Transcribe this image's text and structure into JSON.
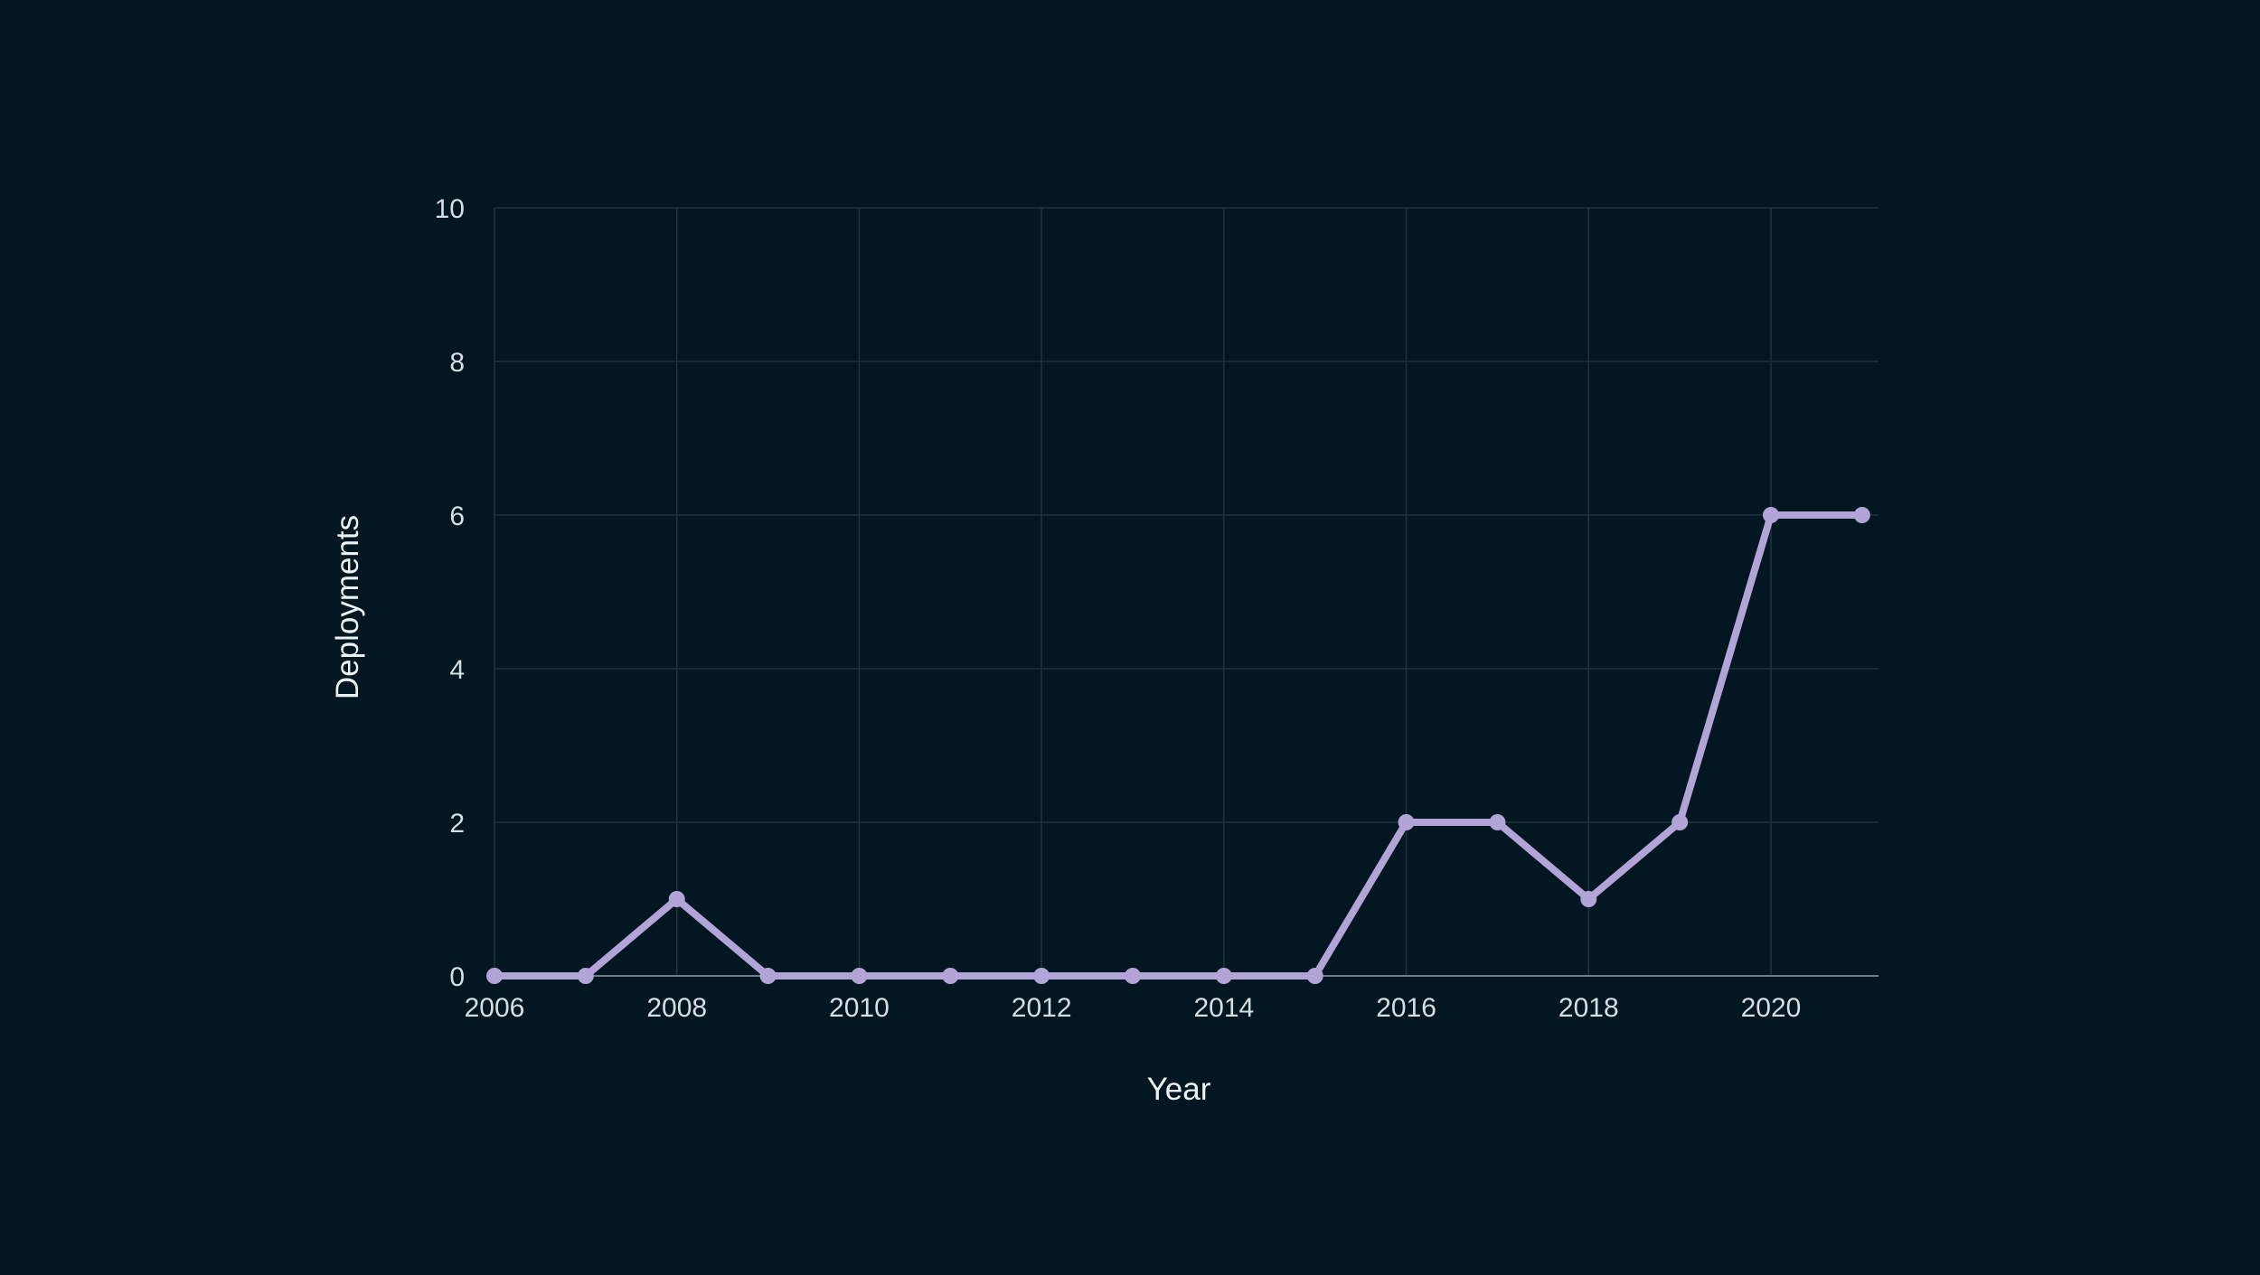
{
  "colors": {
    "background": "#021722",
    "grid": "#1f333d",
    "axis_line": "#6f7c85",
    "tick_label": "#d8dde3",
    "axis_title": "#eef1f4",
    "series": "#b3a4d8"
  },
  "chart_data": {
    "type": "line",
    "title": "",
    "xlabel": "Year",
    "ylabel": "Deployments",
    "xlim": [
      2006,
      2021.2
    ],
    "ylim": [
      0,
      10
    ],
    "x_ticks": [
      2006,
      2008,
      2010,
      2012,
      2014,
      2016,
      2018,
      2020
    ],
    "y_ticks": [
      0,
      2,
      4,
      6,
      8,
      10
    ],
    "grid": true,
    "legend": "none",
    "series": [
      {
        "x": [
          2006,
          2007,
          2008,
          2009,
          2010,
          2011,
          2012,
          2013,
          2014,
          2015,
          2016,
          2017,
          2018,
          2019,
          2020,
          2021
        ],
        "y": [
          0,
          0,
          1,
          0,
          0,
          0,
          0,
          0,
          0,
          0,
          2,
          2,
          1,
          2,
          6,
          6
        ]
      }
    ]
  }
}
